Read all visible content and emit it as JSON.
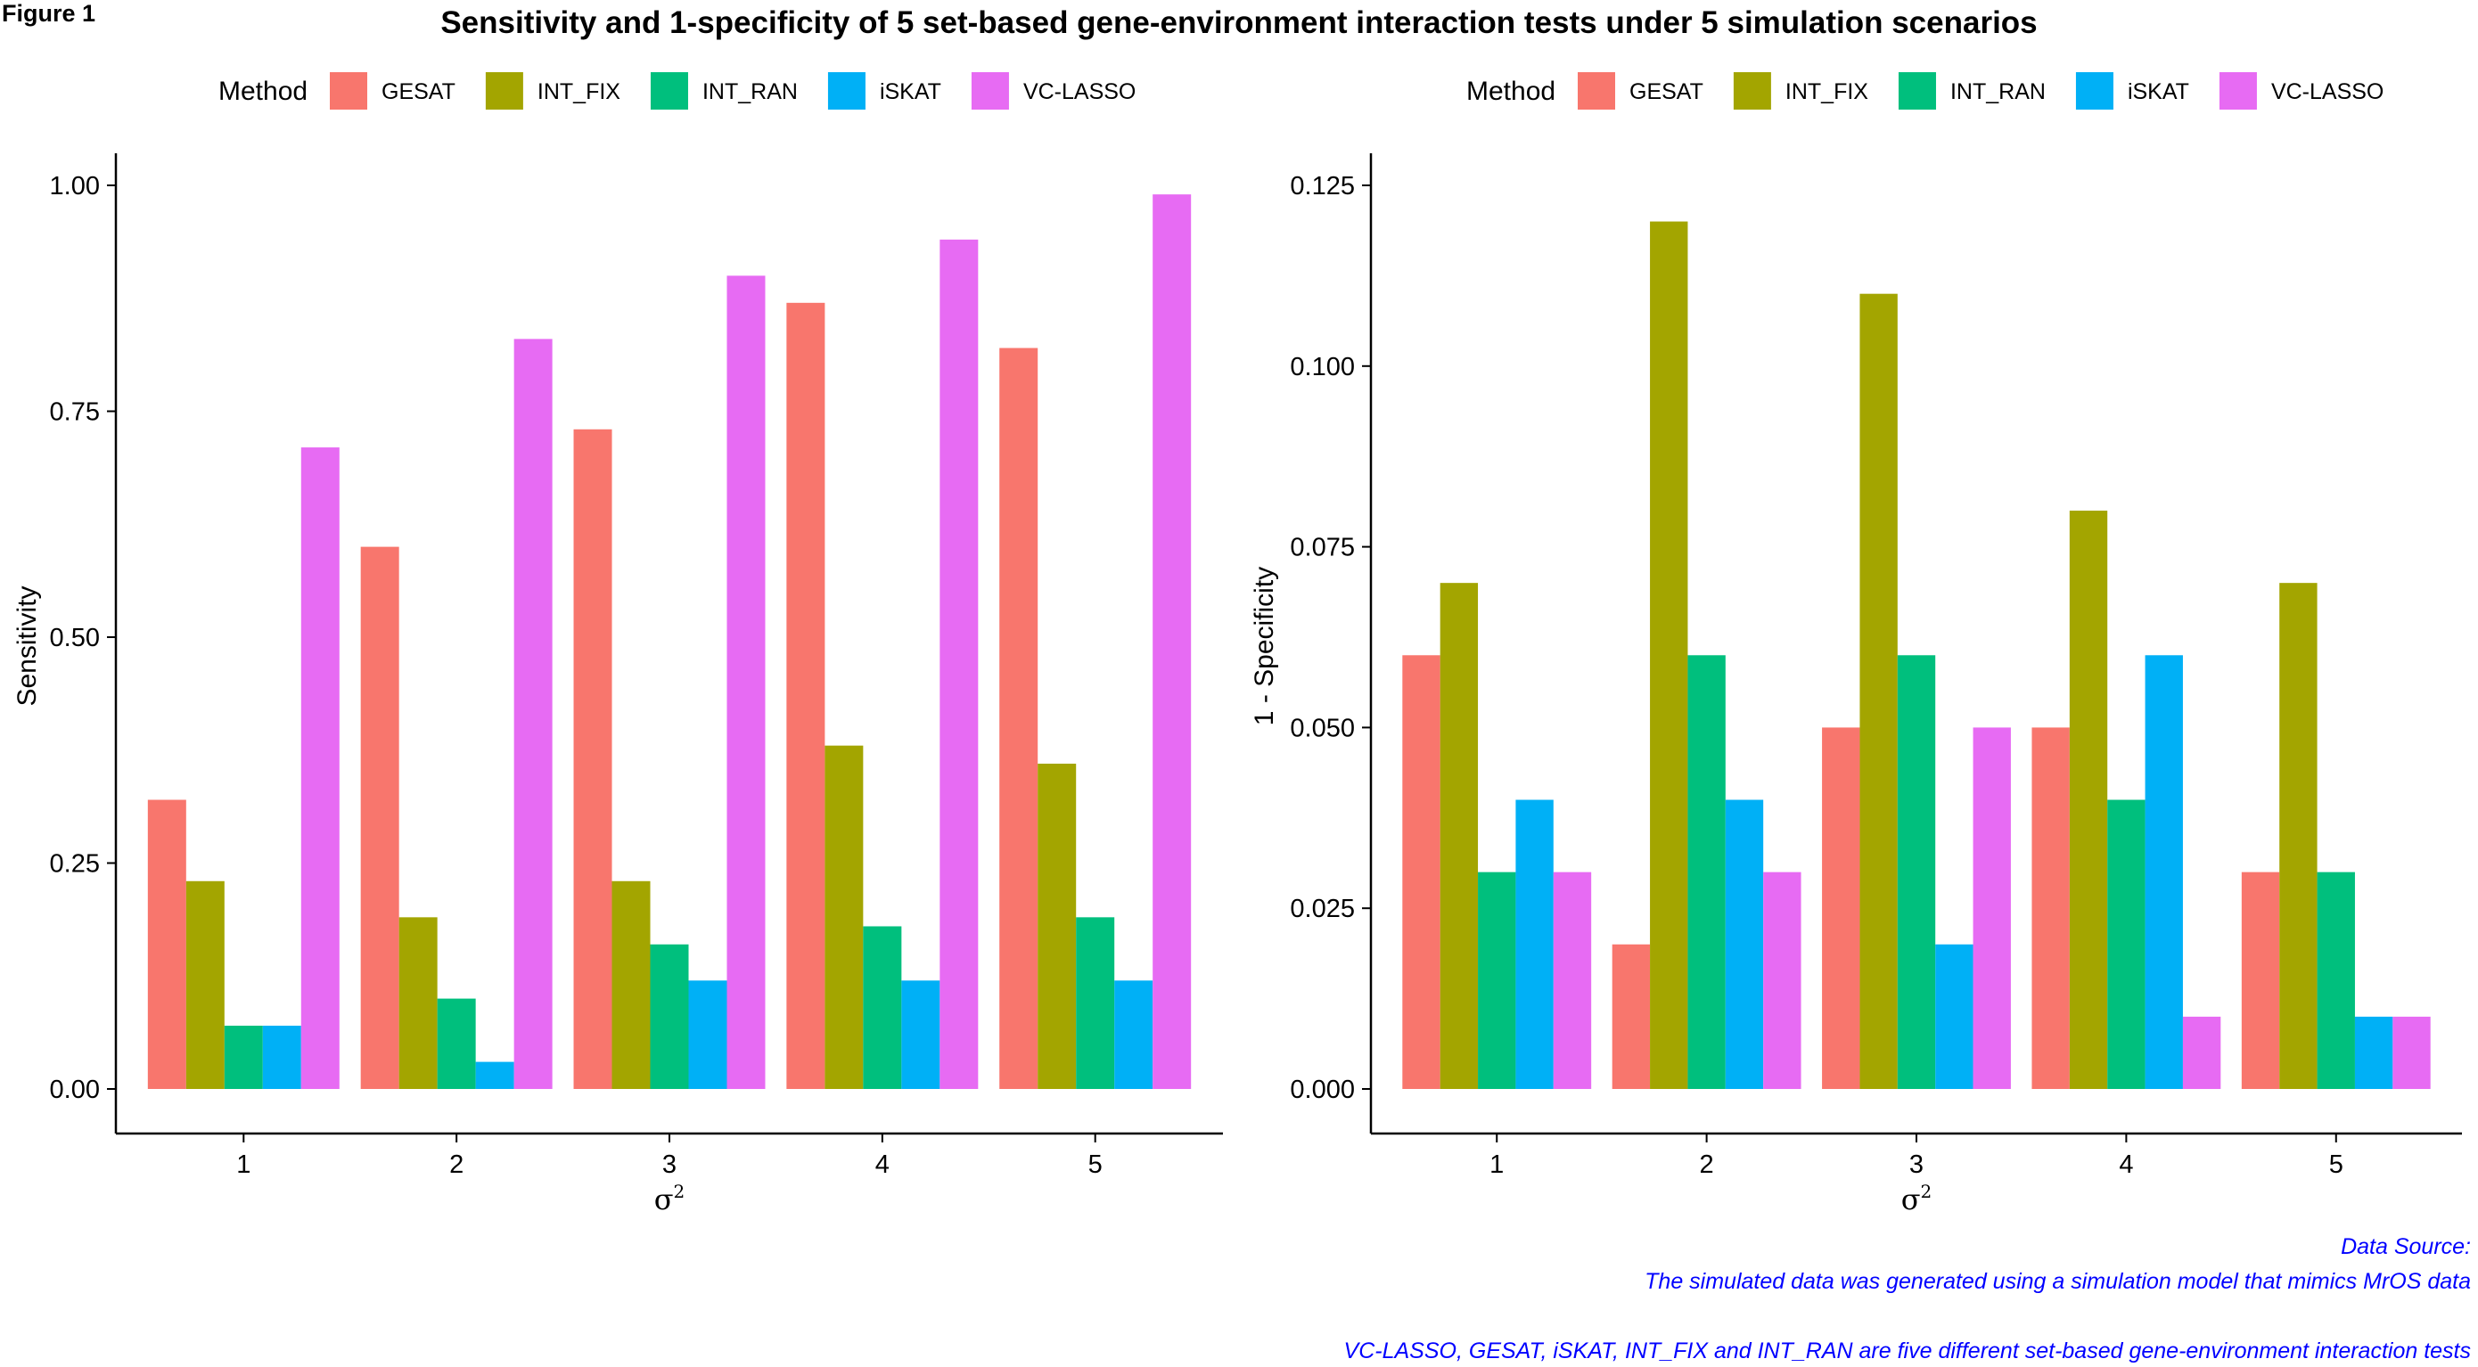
{
  "figure_label": "Figure 1",
  "title": "Sensitivity and 1-specificity of 5 set-based gene-environment interaction tests under 5 simulation scenarios",
  "captions": [
    "Data Source:",
    "The simulated data was generated using a simulation model that mimics MrOS data",
    "VC-LASSO, GESAT, iSKAT, INT_FIX and INT_RAN are five different set-based gene-environment interaction tests"
  ],
  "legend": {
    "title": "Method",
    "placement": "top",
    "items": [
      {
        "name": "GESAT",
        "color": "#F8766D"
      },
      {
        "name": "INT_FIX",
        "color": "#A3A500"
      },
      {
        "name": "INT_RAN",
        "color": "#00BF7D"
      },
      {
        "name": "iSKAT",
        "color": "#00B0F6"
      },
      {
        "name": "VC-LASSO",
        "color": "#E76BF3"
      }
    ]
  },
  "chart_data": [
    {
      "type": "bar",
      "title": "",
      "xlabel": "σ",
      "xlabel_superscript": "2",
      "ylabel": "Sensitivity",
      "categories": [
        "1",
        "2",
        "3",
        "4",
        "5"
      ],
      "ylim": [
        0,
        1.0
      ],
      "yticks": [
        "0.00",
        "0.25",
        "0.50",
        "0.75",
        "1.00"
      ],
      "grid": false,
      "series": [
        {
          "name": "GESAT",
          "values": [
            0.32,
            0.6,
            0.73,
            0.87,
            0.82
          ]
        },
        {
          "name": "INT_FIX",
          "values": [
            0.23,
            0.19,
            0.23,
            0.38,
            0.36
          ]
        },
        {
          "name": "INT_RAN",
          "values": [
            0.07,
            0.1,
            0.16,
            0.18,
            0.19
          ]
        },
        {
          "name": "iSKAT",
          "values": [
            0.07,
            0.03,
            0.12,
            0.12,
            0.12
          ]
        },
        {
          "name": "VC-LASSO",
          "values": [
            0.71,
            0.83,
            0.9,
            0.94,
            0.99
          ]
        }
      ]
    },
    {
      "type": "bar",
      "title": "",
      "xlabel": "σ",
      "xlabel_superscript": "2",
      "ylabel": "1 - Specificity",
      "categories": [
        "1",
        "2",
        "3",
        "4",
        "5"
      ],
      "ylim": [
        0,
        0.125
      ],
      "yticks": [
        "0.000",
        "0.025",
        "0.050",
        "0.075",
        "0.100",
        "0.125"
      ],
      "grid": false,
      "series": [
        {
          "name": "GESAT",
          "values": [
            0.06,
            0.02,
            0.05,
            0.05,
            0.03
          ]
        },
        {
          "name": "INT_FIX",
          "values": [
            0.07,
            0.12,
            0.11,
            0.08,
            0.07
          ]
        },
        {
          "name": "INT_RAN",
          "values": [
            0.03,
            0.06,
            0.06,
            0.04,
            0.03
          ]
        },
        {
          "name": "iSKAT",
          "values": [
            0.04,
            0.04,
            0.02,
            0.06,
            0.01
          ]
        },
        {
          "name": "VC-LASSO",
          "values": [
            0.03,
            0.03,
            0.05,
            0.01,
            0.01
          ]
        }
      ]
    }
  ]
}
